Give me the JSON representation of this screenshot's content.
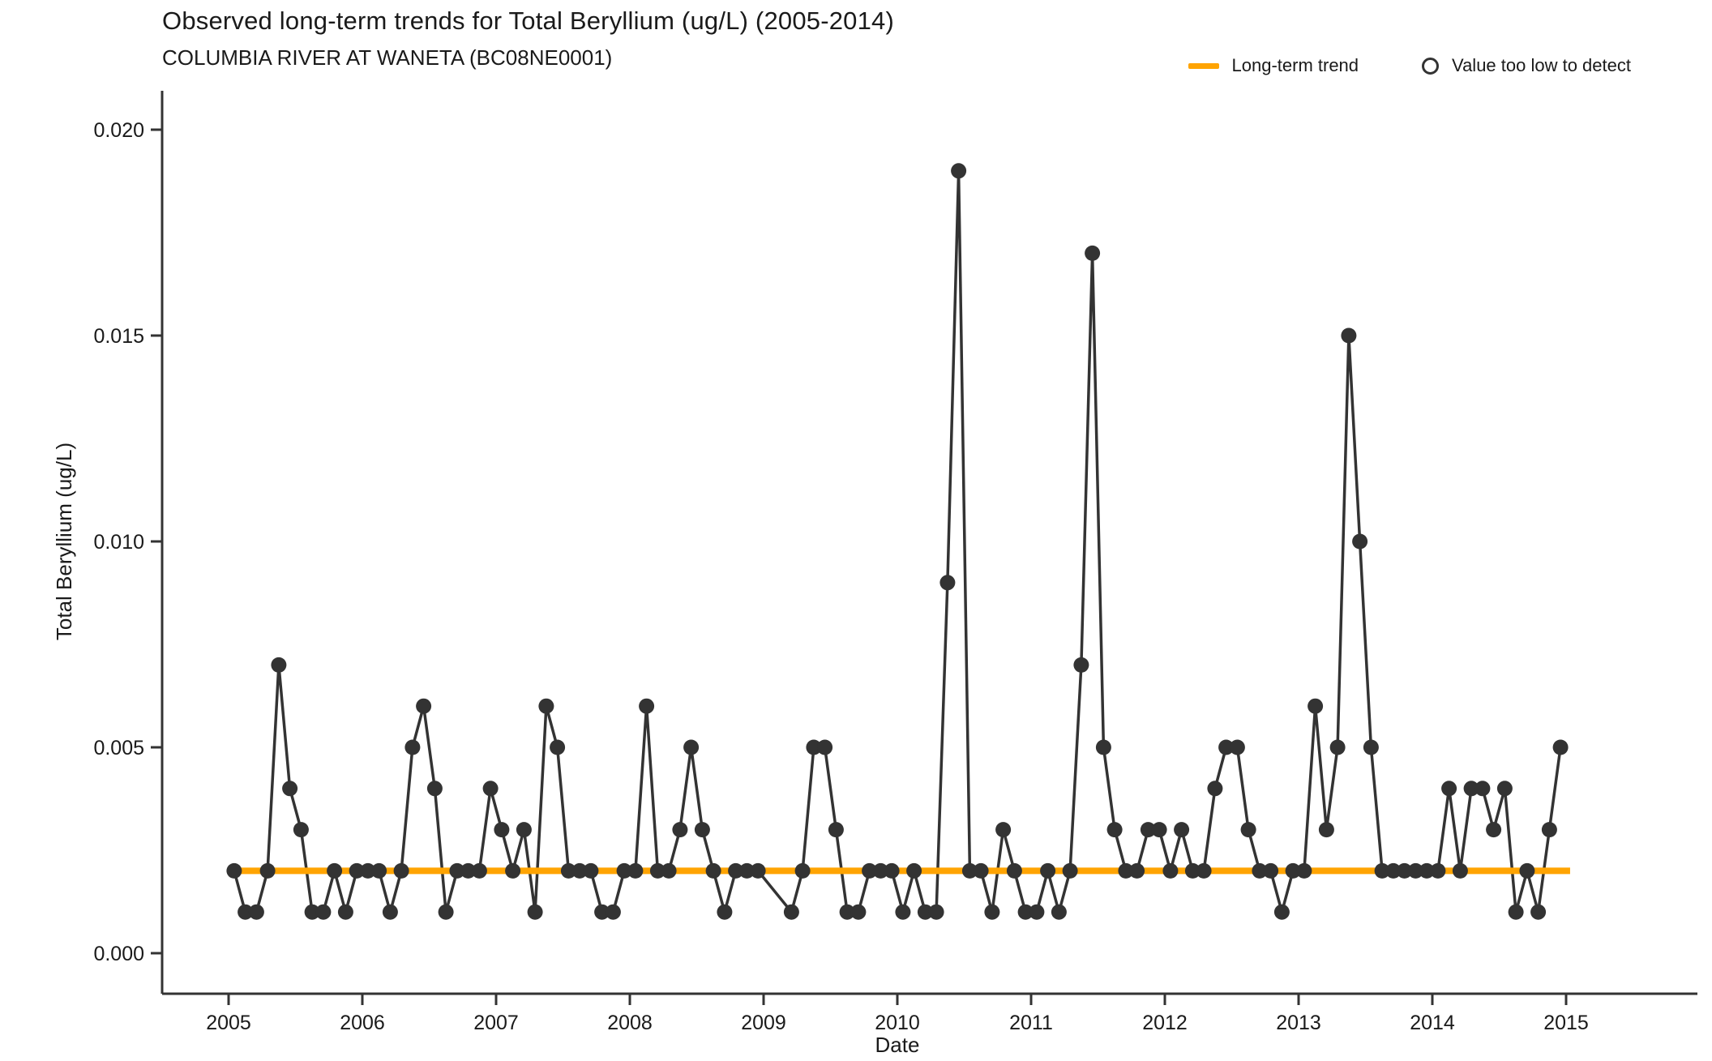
{
  "page": {
    "background": "#ffffff"
  },
  "header": {
    "title": "Observed long-term trends for Total Beryllium (ug/L) (2005-2014)",
    "subtitle": "COLUMBIA RIVER AT WANETA (BC08NE0001)"
  },
  "legend": {
    "items": [
      {
        "label": "Long-term trend",
        "marker": "orange-line",
        "color": "#FFA402"
      },
      {
        "label": "Value too low to detect",
        "marker": "open-circle",
        "color": "#333333"
      }
    ]
  },
  "chart_data": {
    "type": "line",
    "title": "Observed long-term trends for Total Beryllium (ug/L) (2005-2014)",
    "subtitle": "COLUMBIA RIVER AT WANETA (BC08NE0001)",
    "xlabel": "Date",
    "ylabel": "Total Beryllium (ug/L)",
    "x_ticks": [
      2005,
      2006,
      2007,
      2008,
      2009,
      2010,
      2011,
      2012,
      2013,
      2014,
      2015
    ],
    "y_ticks": [
      0.0,
      0.005,
      0.01,
      0.015,
      0.02
    ],
    "y_tick_labels": [
      "0.000",
      "0.005",
      "0.010",
      "0.015",
      "0.020"
    ],
    "ylim": [
      0,
      0.0205
    ],
    "xlim": [
      2004.5,
      2015.35
    ],
    "grid": false,
    "legend_position": "top-right",
    "unit": "ug/L",
    "point_color": "#333333",
    "line_color": "#333333",
    "trend": {
      "label": "Long-term trend",
      "value": 0.002,
      "color": "#FFA402",
      "x_start": 2005.0,
      "x_end": 2015.03
    },
    "years": [
      {
        "year": 2005,
        "monthly_values": [
          0.002,
          0.001,
          0.001,
          0.002,
          0.007,
          0.004,
          0.003,
          0.001,
          0.001,
          0.002,
          0.001,
          0.002
        ]
      },
      {
        "year": 2006,
        "monthly_values": [
          0.002,
          0.002,
          0.001,
          0.002,
          0.005,
          0.006,
          0.004,
          0.001,
          0.002,
          0.002,
          0.002,
          0.004
        ]
      },
      {
        "year": 2007,
        "monthly_values": [
          0.003,
          0.002,
          0.003,
          0.001,
          0.006,
          0.005,
          0.002,
          0.002,
          0.002,
          0.001,
          0.001,
          0.002
        ]
      },
      {
        "year": 2008,
        "monthly_values": [
          0.002,
          0.006,
          0.002,
          0.002,
          0.003,
          0.005,
          0.003,
          0.002,
          0.001,
          0.002,
          0.002,
          0.002
        ]
      },
      {
        "year": 2009,
        "monthly_values": [
          null,
          null,
          0.001,
          0.002,
          0.005,
          0.005,
          0.003,
          0.001,
          0.001,
          0.002,
          0.002,
          0.002
        ]
      },
      {
        "year": 2010,
        "monthly_values": [
          0.001,
          0.002,
          0.001,
          0.001,
          0.009,
          0.019,
          0.002,
          0.002,
          0.001,
          0.003,
          0.002,
          0.001
        ]
      },
      {
        "year": 2011,
        "monthly_values": [
          0.001,
          0.002,
          0.001,
          0.002,
          0.007,
          0.017,
          0.005,
          0.003,
          0.002,
          0.002,
          0.003,
          0.003
        ]
      },
      {
        "year": 2012,
        "monthly_values": [
          0.002,
          0.003,
          0.002,
          0.002,
          0.004,
          0.005,
          0.005,
          0.003,
          0.002,
          0.002,
          0.001,
          0.002
        ]
      },
      {
        "year": 2013,
        "monthly_values": [
          0.002,
          0.006,
          0.003,
          0.005,
          0.015,
          0.01,
          0.005,
          0.002,
          0.002,
          0.002,
          0.002,
          0.002
        ]
      },
      {
        "year": 2014,
        "monthly_values": [
          0.002,
          0.004,
          0.002,
          0.004,
          0.004,
          0.003,
          0.004,
          0.001,
          0.002,
          0.001,
          0.003,
          0.005
        ]
      }
    ]
  }
}
